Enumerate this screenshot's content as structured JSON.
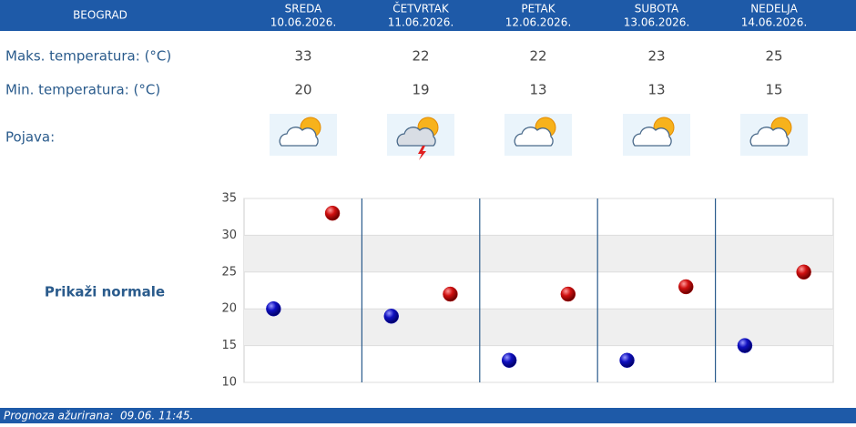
{
  "header": {
    "city": "BEOGRAD"
  },
  "rows": {
    "max_label": "Maks. temperatura: (°C)",
    "min_label": "Min. temperatura: (°C)",
    "icon_label": "Pojava:"
  },
  "link": "Prikaži normale",
  "footer": "Prognoza ažurirana:  09.06. 11:45.",
  "chart_data": {
    "type": "scatter",
    "categories": [
      "SREDA",
      "ČETVRTAK",
      "PETAK",
      "SUBOTA",
      "NEDELJA"
    ],
    "dates": [
      "10.06.2026.",
      "11.06.2026.",
      "12.06.2026.",
      "13.06.2026.",
      "14.06.2026."
    ],
    "series": [
      {
        "color": "#1010c0",
        "values": [
          20,
          19,
          13,
          13,
          15
        ]
      },
      {
        "color": "#c01010",
        "values": [
          33,
          22,
          22,
          23,
          25
        ]
      }
    ],
    "ylim": [
      10,
      35
    ],
    "yticks": [
      10,
      15,
      20,
      25,
      30,
      35
    ],
    "grid": true
  }
}
